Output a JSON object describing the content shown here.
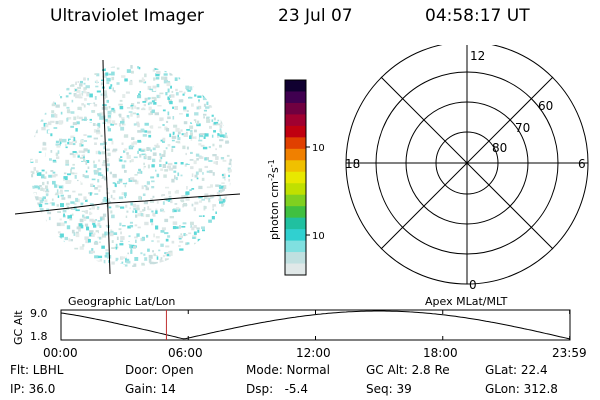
{
  "header": {
    "title": "Ultraviolet Imager",
    "date": "23 Jul 07",
    "time": "04:58:17 UT"
  },
  "colorbar": {
    "label_main": "photon cm",
    "label_exp1": "-2",
    "label_mid": "s",
    "label_exp2": "-1",
    "ticks": [
      {
        "label": "100",
        "value": 100
      },
      {
        "label": "10",
        "value": 10
      }
    ],
    "colors": [
      "#e0e8e8",
      "#c0e0e0",
      "#80e0e0",
      "#30d0d0",
      "#20c0a0",
      "#40c040",
      "#80d020",
      "#c0e000",
      "#e8e800",
      "#f0c000",
      "#f08000",
      "#e04000",
      "#c00010",
      "#a00030",
      "#700040",
      "#400050",
      "#100030"
    ]
  },
  "polar": {
    "ring_labels": [
      {
        "label": "60",
        "value": 60
      },
      {
        "label": "70",
        "value": 70
      },
      {
        "label": "80",
        "value": 80
      }
    ],
    "mlt_labels": [
      {
        "label": "12",
        "value": 12
      },
      {
        "label": "18",
        "value": 18
      },
      {
        "label": "6",
        "value": 6
      },
      {
        "label": "0",
        "value": 0
      }
    ]
  },
  "image_labels": {
    "left": "Geographic Lat/Lon",
    "right": "Apex MLat/MLT"
  },
  "altitude_plot": {
    "ylabel": "GC Alt",
    "yticks": [
      {
        "label": "9.0",
        "value": 9.0
      },
      {
        "label": "1.8",
        "value": 1.8
      }
    ],
    "xticks": [
      {
        "label": "00:00",
        "value": 0
      },
      {
        "label": "06:00",
        "value": 6
      },
      {
        "label": "12:00",
        "value": 12
      },
      {
        "label": "18:00",
        "value": 18
      },
      {
        "label": "23:59",
        "value": 23.983
      }
    ],
    "current_time_hours": 4.971
  },
  "info": {
    "flt": "Flt: LBHL",
    "door": "Door: Open",
    "mode": "Mode: Normal",
    "gc_alt": "GC Alt: 2.8 Re",
    "glat": "GLat:  22.4",
    "ip": "IP: 36.0",
    "gain": "Gain: 14",
    "dsp": "Dsp:   -5.4",
    "seq": "Seq: 39",
    "glon": "GLon: 312.8"
  }
}
